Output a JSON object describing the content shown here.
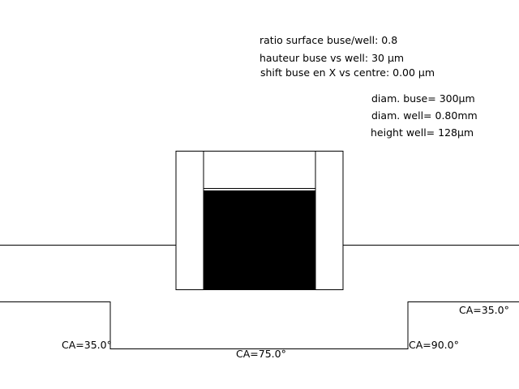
{
  "params": {
    "ratio": "ratio surface buse/well: 0.8",
    "height": "hauteur buse vs well: 30 µm",
    "shift": "shift buse en X vs centre: 0.00 µm"
  },
  "dims": {
    "nozzle_diam": "diam. buse= 300µm",
    "well_diam": "diam. well= 0.80mm",
    "well_height": "height well= 128µm"
  },
  "contact_angles": {
    "left_wall": "CA=35.0°",
    "bottom": "CA=75.0°",
    "right_wall": "CA=90.0°",
    "right_top": "CA=35.0°"
  }
}
